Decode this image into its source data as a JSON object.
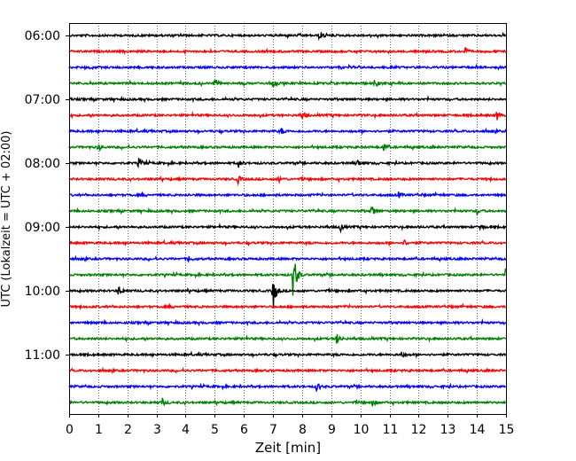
{
  "chart_data": {
    "type": "line",
    "subtype": "helicorder",
    "xlabel": "Zeit  [min]",
    "ylabel": "UTC (Lokalzeit = UTC + 02:00)",
    "x_ticks": [
      "0",
      "1",
      "2",
      "3",
      "4",
      "5",
      "6",
      "7",
      "8",
      "9",
      "10",
      "11",
      "12",
      "13",
      "14",
      "15"
    ],
    "xlim": [
      0,
      15
    ],
    "y_ticks": [
      "06:00",
      "07:00",
      "08:00",
      "09:00",
      "10:00",
      "11:00"
    ],
    "trace_interval_minutes": 15,
    "grid": "vertical dotted at each minute",
    "colors": [
      "#000000",
      "#ff0000",
      "#0000ff",
      "#008000"
    ],
    "traces": [
      {
        "start": "06:00",
        "color": "#000000",
        "events": [
          {
            "t": 8.6,
            "amp": 0.3
          }
        ]
      },
      {
        "start": "06:15",
        "color": "#ff0000",
        "events": [
          {
            "t": 13.6,
            "amp": 0.2
          }
        ]
      },
      {
        "start": "06:30",
        "color": "#0000ff",
        "events": []
      },
      {
        "start": "06:45",
        "color": "#008000",
        "events": [
          {
            "t": 5.0,
            "amp": 0.25
          },
          {
            "t": 7.0,
            "amp": 0.3
          },
          {
            "t": 10.5,
            "amp": 0.25
          }
        ]
      },
      {
        "start": "07:00",
        "color": "#000000",
        "events": []
      },
      {
        "start": "07:15",
        "color": "#ff0000",
        "events": [
          {
            "t": 8.0,
            "amp": 0.25
          },
          {
            "t": 14.7,
            "amp": 0.3
          }
        ]
      },
      {
        "start": "07:30",
        "color": "#0000ff",
        "events": [
          {
            "t": 7.3,
            "amp": 0.2
          }
        ]
      },
      {
        "start": "07:45",
        "color": "#008000",
        "events": [
          {
            "t": 1.0,
            "amp": 0.2
          },
          {
            "t": 10.8,
            "amp": 0.25
          }
        ]
      },
      {
        "start": "08:00",
        "color": "#000000",
        "events": [
          {
            "t": 2.4,
            "amp": 0.35
          },
          {
            "t": 5.8,
            "amp": 0.3
          },
          {
            "t": 9.9,
            "amp": 0.2
          }
        ]
      },
      {
        "start": "08:15",
        "color": "#ff0000",
        "events": [
          {
            "t": 5.8,
            "amp": 0.25
          },
          {
            "t": 7.2,
            "amp": 0.2
          }
        ]
      },
      {
        "start": "08:30",
        "color": "#0000ff",
        "events": [
          {
            "t": 11.3,
            "amp": 0.2
          }
        ]
      },
      {
        "start": "08:45",
        "color": "#008000",
        "events": [
          {
            "t": 10.4,
            "amp": 0.35
          },
          {
            "t": 14.0,
            "amp": 0.2
          }
        ]
      },
      {
        "start": "09:00",
        "color": "#000000",
        "events": [
          {
            "t": 9.3,
            "amp": 0.3
          },
          {
            "t": 14.1,
            "amp": 0.25
          }
        ]
      },
      {
        "start": "09:15",
        "color": "#ff0000",
        "events": [
          {
            "t": 11.5,
            "amp": 0.2
          }
        ]
      },
      {
        "start": "09:30",
        "color": "#0000ff",
        "events": [
          {
            "t": 4.1,
            "amp": 0.2
          }
        ]
      },
      {
        "start": "09:45",
        "color": "#008000",
        "events": [
          {
            "t": 7.7,
            "amp": 2.0
          },
          {
            "t": 15.0,
            "amp": 0.6
          }
        ]
      },
      {
        "start": "10:00",
        "color": "#000000",
        "events": [
          {
            "t": 1.7,
            "amp": 0.3
          },
          {
            "t": 7.0,
            "amp": 1.3
          }
        ]
      },
      {
        "start": "10:15",
        "color": "#ff0000",
        "events": []
      },
      {
        "start": "10:30",
        "color": "#0000ff",
        "events": []
      },
      {
        "start": "10:45",
        "color": "#008000",
        "events": [
          {
            "t": 9.2,
            "amp": 0.4
          }
        ]
      },
      {
        "start": "11:00",
        "color": "#000000",
        "events": [
          {
            "t": 11.4,
            "amp": 0.2
          }
        ]
      },
      {
        "start": "11:15",
        "color": "#ff0000",
        "events": []
      },
      {
        "start": "11:30",
        "color": "#0000ff",
        "events": [
          {
            "t": 8.5,
            "amp": 0.35
          }
        ]
      },
      {
        "start": "11:45",
        "color": "#008000",
        "events": [
          {
            "t": 3.2,
            "amp": 0.25
          },
          {
            "t": 10.4,
            "amp": 0.25
          }
        ]
      }
    ]
  }
}
